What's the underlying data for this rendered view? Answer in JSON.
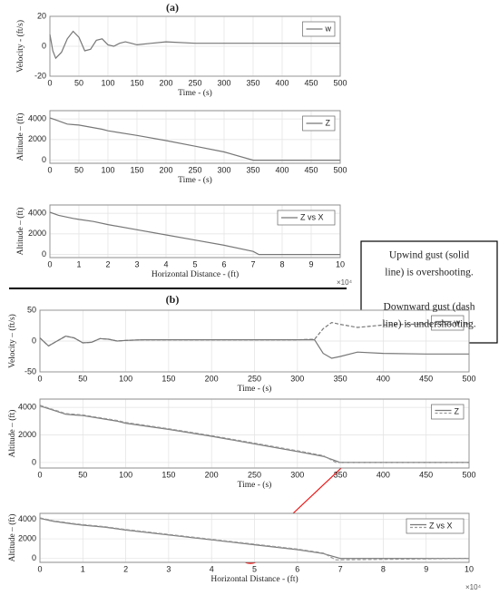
{
  "panel_labels": [
    "(a)",
    "(b)"
  ],
  "annotation": {
    "lines": [
      "Upwind gust (solid",
      "line) is overshooting.",
      "",
      "Downward gust (dash",
      "line) is undershooting."
    ]
  },
  "chart_data": [
    {
      "type": "line",
      "ylabel": "Velocity - (ft/s)",
      "xlabel": "Time - (s)",
      "xlim": [
        0,
        500
      ],
      "ylim": [
        -20,
        20
      ],
      "xticks": [
        0,
        50,
        100,
        150,
        200,
        250,
        300,
        350,
        400,
        450,
        500
      ],
      "yticks": [
        -20,
        0,
        20
      ],
      "grid": true,
      "legend": "upper right",
      "series": [
        {
          "name": "w",
          "color": "#777777",
          "dash": false,
          "x": [
            0,
            5,
            10,
            20,
            30,
            40,
            50,
            60,
            70,
            80,
            90,
            100,
            110,
            120,
            130,
            140,
            150,
            175,
            200,
            250,
            300,
            350,
            400,
            450,
            500
          ],
          "values": [
            8,
            -3,
            -8,
            -4,
            5,
            10,
            6,
            -3,
            -2,
            4,
            5,
            1,
            0,
            2,
            3,
            2,
            1,
            2,
            3,
            2,
            2,
            2,
            2,
            2,
            2
          ]
        }
      ]
    },
    {
      "type": "line",
      "ylabel": "Altitude – (ft)",
      "xlabel": "Time - (s)",
      "xlim": [
        0,
        500
      ],
      "ylim": [
        -300,
        4800
      ],
      "xticks": [
        0,
        50,
        100,
        150,
        200,
        250,
        300,
        350,
        400,
        450,
        500
      ],
      "yticks": [
        0,
        2000,
        4000
      ],
      "grid": true,
      "legend": "upper right",
      "series": [
        {
          "name": "Z",
          "color": "#777777",
          "dash": false,
          "x": [
            0,
            10,
            30,
            40,
            50,
            90,
            100,
            150,
            200,
            250,
            300,
            350,
            500
          ],
          "values": [
            4100,
            3900,
            3500,
            3450,
            3400,
            3000,
            2850,
            2400,
            1900,
            1350,
            800,
            0,
            0
          ]
        }
      ]
    },
    {
      "type": "line",
      "ylabel": "Altitude – (ft)",
      "xlabel": "Horizontal Distance - (ft)",
      "x_exponent_label": "×10⁴",
      "xlim": [
        0,
        10
      ],
      "ylim": [
        -300,
        4800
      ],
      "xticks": [
        0,
        1,
        2,
        3,
        4,
        5,
        6,
        7,
        8,
        9,
        10
      ],
      "yticks": [
        0,
        2000,
        4000
      ],
      "grid": true,
      "legend": "upper right",
      "series": [
        {
          "name": "Z vs X",
          "color": "#777777",
          "dash": false,
          "x": [
            0,
            0.3,
            0.8,
            1,
            1.5,
            2,
            3,
            4,
            5,
            6,
            7,
            7.2,
            10
          ],
          "values": [
            4100,
            3800,
            3500,
            3400,
            3200,
            2900,
            2400,
            1900,
            1400,
            900,
            300,
            0,
            0
          ]
        }
      ]
    },
    {
      "type": "line",
      "ylabel": "Velocity – (ft/s)",
      "xlabel": "Time - (s)",
      "xlim": [
        0,
        500
      ],
      "ylim": [
        -50,
        50
      ],
      "xticks": [
        0,
        50,
        100,
        150,
        200,
        250,
        300,
        350,
        400,
        450,
        500
      ],
      "yticks": [
        -50,
        0,
        50
      ],
      "grid": true,
      "legend": "upper right",
      "series": [
        {
          "name": "w",
          "color": "#777777",
          "dash": false,
          "x": [
            0,
            10,
            20,
            30,
            40,
            50,
            60,
            70,
            80,
            90,
            100,
            120,
            150,
            200,
            250,
            300,
            320,
            330,
            340,
            350,
            370,
            400,
            450,
            500
          ],
          "values": [
            5,
            -8,
            0,
            8,
            5,
            -3,
            -2,
            4,
            3,
            0,
            1,
            2,
            2,
            2,
            2,
            2,
            2,
            -20,
            -28,
            -25,
            -18,
            -20,
            -21,
            -21
          ]
        },
        {
          "color": "#777777",
          "dash": true,
          "x": [
            0,
            10,
            20,
            30,
            40,
            50,
            60,
            70,
            80,
            90,
            100,
            120,
            150,
            200,
            250,
            300,
            320,
            330,
            340,
            350,
            370,
            400,
            450,
            500
          ],
          "values": [
            5,
            -8,
            0,
            8,
            5,
            -3,
            -2,
            4,
            3,
            0,
            1,
            2,
            2,
            2,
            2,
            2,
            3,
            20,
            30,
            27,
            22,
            26,
            28,
            28
          ]
        }
      ]
    },
    {
      "type": "line",
      "ylabel": "Altitude – (ft)",
      "xlabel": "Time - (s)",
      "xlim": [
        0,
        500
      ],
      "ylim": [
        -400,
        4600
      ],
      "xticks": [
        0,
        50,
        100,
        150,
        200,
        250,
        300,
        350,
        400,
        450,
        500
      ],
      "yticks": [
        0,
        2000,
        4000
      ],
      "grid": true,
      "legend": "upper right",
      "series": [
        {
          "name": "Z",
          "color": "#777777",
          "dash": false,
          "x": [
            0,
            10,
            30,
            40,
            50,
            90,
            100,
            150,
            200,
            250,
            300,
            330,
            350,
            500
          ],
          "values": [
            4100,
            3900,
            3500,
            3450,
            3400,
            3000,
            2850,
            2400,
            1900,
            1350,
            800,
            450,
            0,
            0
          ]
        },
        {
          "color": "#999999",
          "dash": true,
          "x": [
            0,
            10,
            30,
            40,
            50,
            90,
            100,
            150,
            200,
            250,
            300,
            330,
            345,
            500
          ],
          "values": [
            4150,
            3950,
            3550,
            3500,
            3450,
            3050,
            2900,
            2450,
            1950,
            1400,
            850,
            500,
            0,
            0
          ]
        }
      ]
    },
    {
      "type": "line",
      "ylabel": "Altitude – (ft)",
      "xlabel": "Horizontal Distance - (ft)",
      "x_exponent_label": "×10⁴",
      "xlim": [
        0,
        10
      ],
      "ylim": [
        -400,
        4600
      ],
      "xticks": [
        0,
        1,
        2,
        3,
        4,
        5,
        6,
        7,
        8,
        9,
        10
      ],
      "yticks": [
        0,
        2000,
        4000
      ],
      "grid": true,
      "legend": "upper right",
      "series": [
        {
          "name": "Z vs X",
          "color": "#777777",
          "dash": false,
          "x": [
            0,
            0.3,
            0.8,
            1,
            1.5,
            2,
            3,
            4,
            5,
            6,
            6.6,
            7,
            10
          ],
          "values": [
            4100,
            3800,
            3500,
            3400,
            3200,
            2900,
            2400,
            1900,
            1400,
            900,
            500,
            0,
            0
          ]
        },
        {
          "color": "#999999",
          "dash": true,
          "x": [
            0,
            0.3,
            0.8,
            1,
            1.5,
            2,
            3,
            4,
            5,
            6,
            6.6,
            6.9,
            10
          ],
          "values": [
            4150,
            3850,
            3550,
            3450,
            3250,
            2950,
            2450,
            1950,
            1450,
            950,
            550,
            -150,
            0
          ]
        }
      ]
    }
  ]
}
